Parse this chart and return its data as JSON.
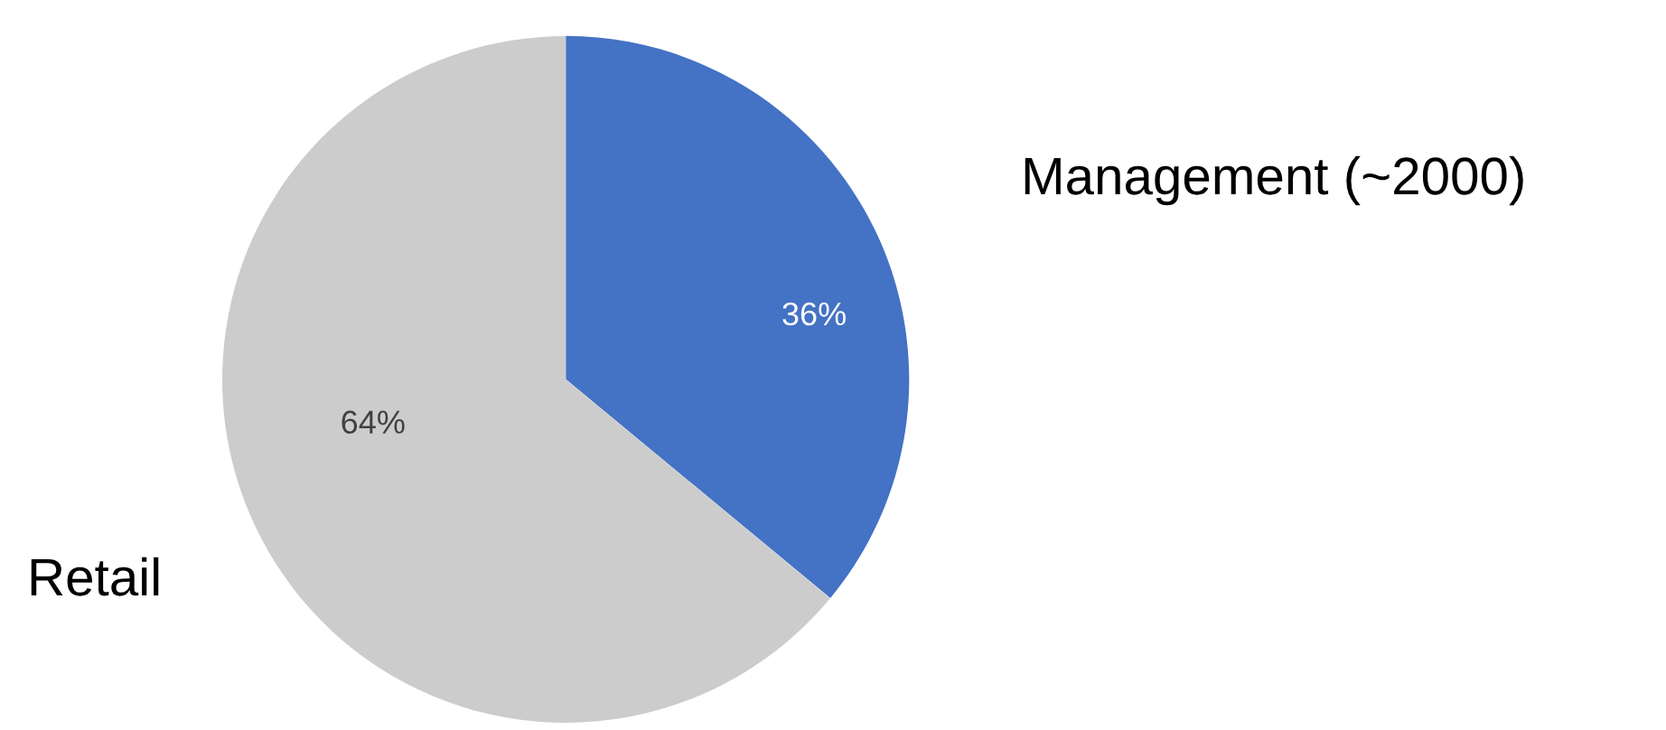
{
  "chart_data": {
    "type": "pie",
    "categories": [
      "Management (~2000)",
      "Retail"
    ],
    "values": [
      36,
      64
    ],
    "colors": [
      "#4472c4",
      "#cccccc"
    ],
    "value_labels": [
      "36%",
      "64%"
    ],
    "legend": false
  }
}
